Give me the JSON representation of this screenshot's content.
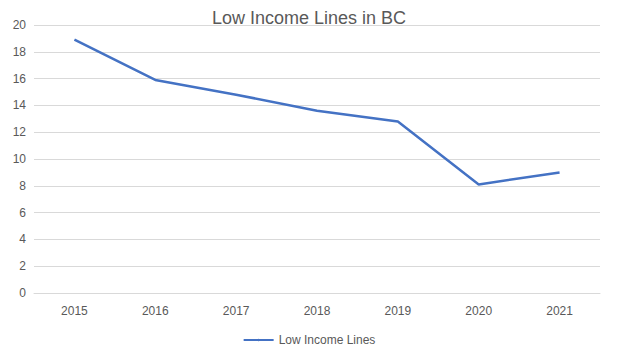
{
  "chart_data": {
    "type": "line",
    "title": "Low Income Lines in BC",
    "categories": [
      "2015",
      "2016",
      "2017",
      "2018",
      "2019",
      "2020",
      "2021"
    ],
    "series": [
      {
        "name": "Low Income Lines",
        "color": "#4472c4",
        "values": [
          18.9,
          15.9,
          14.8,
          13.6,
          12.8,
          8.1,
          9.0
        ]
      }
    ],
    "ylim": [
      0,
      20
    ],
    "yticks": [
      0,
      2,
      4,
      6,
      8,
      10,
      12,
      14,
      16,
      18,
      20
    ],
    "grid": true,
    "legend": "bottom"
  }
}
